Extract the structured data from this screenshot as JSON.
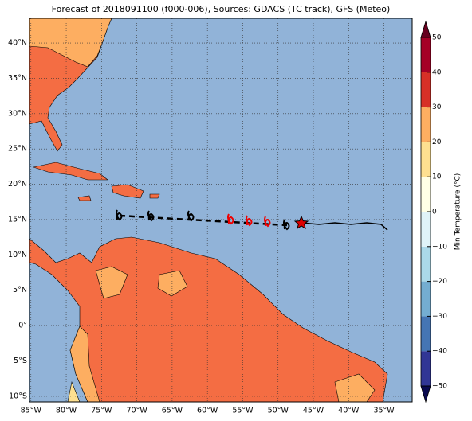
{
  "map": {
    "title": "Forecast of 2018091100 (f000-006), Sources: GDACS (TC track), GFS (Meteo)",
    "lonlim": [
      -85.2,
      -31
    ],
    "latlim": [
      -10.8,
      43.5
    ],
    "lon_ticks": [
      {
        "value": -85,
        "label": "85°W"
      },
      {
        "value": -80,
        "label": "80°W"
      },
      {
        "value": -75,
        "label": "75°W"
      },
      {
        "value": -70,
        "label": "70°W"
      },
      {
        "value": -65,
        "label": "65°W"
      },
      {
        "value": -60,
        "label": "60°W"
      },
      {
        "value": -55,
        "label": "55°W"
      },
      {
        "value": -50,
        "label": "50°W"
      },
      {
        "value": -45,
        "label": "45°W"
      },
      {
        "value": -40,
        "label": "40°W"
      },
      {
        "value": -35,
        "label": "35°W"
      }
    ],
    "lat_ticks": [
      {
        "value": -10,
        "label": "10°S"
      },
      {
        "value": -5,
        "label": "5°S"
      },
      {
        "value": 0,
        "label": "0°"
      },
      {
        "value": 5,
        "label": "5°N"
      },
      {
        "value": 10,
        "label": "10°N"
      },
      {
        "value": 15,
        "label": "15°N"
      },
      {
        "value": 20,
        "label": "20°N"
      },
      {
        "value": 25,
        "label": "25°N"
      },
      {
        "value": 30,
        "label": "30°N"
      },
      {
        "value": 35,
        "label": "35°N"
      },
      {
        "value": 40,
        "label": "40°N"
      }
    ],
    "colorbar": {
      "label": "Min Temperature (°C)",
      "lim": [
        -50,
        50
      ],
      "ticks": [
        {
          "value": -50,
          "label": "−50"
        },
        {
          "value": -40,
          "label": "−40"
        },
        {
          "value": -30,
          "label": "−30"
        },
        {
          "value": -20,
          "label": "−20"
        },
        {
          "value": -10,
          "label": "−10"
        },
        0,
        10,
        20,
        30,
        40,
        50
      ],
      "colors": [
        "#313695",
        "#4575b4",
        "#74add1",
        "#abd9e9",
        "#e0f3f8",
        "#ffffe5",
        "#fee090",
        "#fdae61",
        "#d73027",
        "#a50026"
      ],
      "under_color": "#0a0a50",
      "over_color": "#67001f"
    }
  }
}
